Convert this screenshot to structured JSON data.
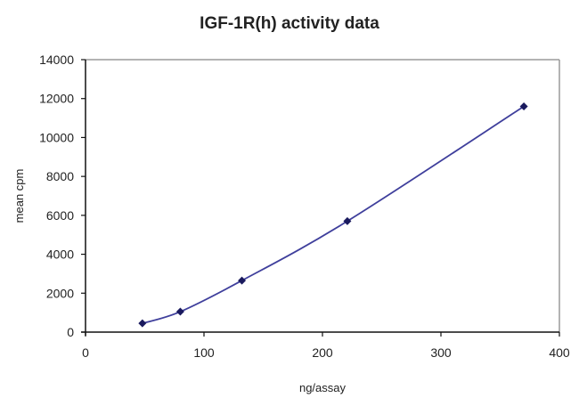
{
  "chart_data": {
    "type": "scatter",
    "title": "IGF-1R(h) activity data",
    "xlabel": "ng/assay",
    "ylabel": "mean cpm",
    "xlim": [
      0,
      400
    ],
    "ylim": [
      0,
      14000
    ],
    "x_ticks": [
      0,
      100,
      200,
      300,
      400
    ],
    "y_ticks": [
      0,
      2000,
      4000,
      6000,
      8000,
      10000,
      12000,
      14000
    ],
    "grid": false,
    "legend": null,
    "series": [
      {
        "name": "IGF-1R(h)",
        "line": "smoothed",
        "marker": "diamond",
        "color": "#3f3f9c",
        "marker_color": "#1a1a5e",
        "x": [
          48,
          80,
          132,
          221,
          370
        ],
        "values": [
          450,
          1050,
          2650,
          5700,
          11600
        ]
      }
    ]
  }
}
